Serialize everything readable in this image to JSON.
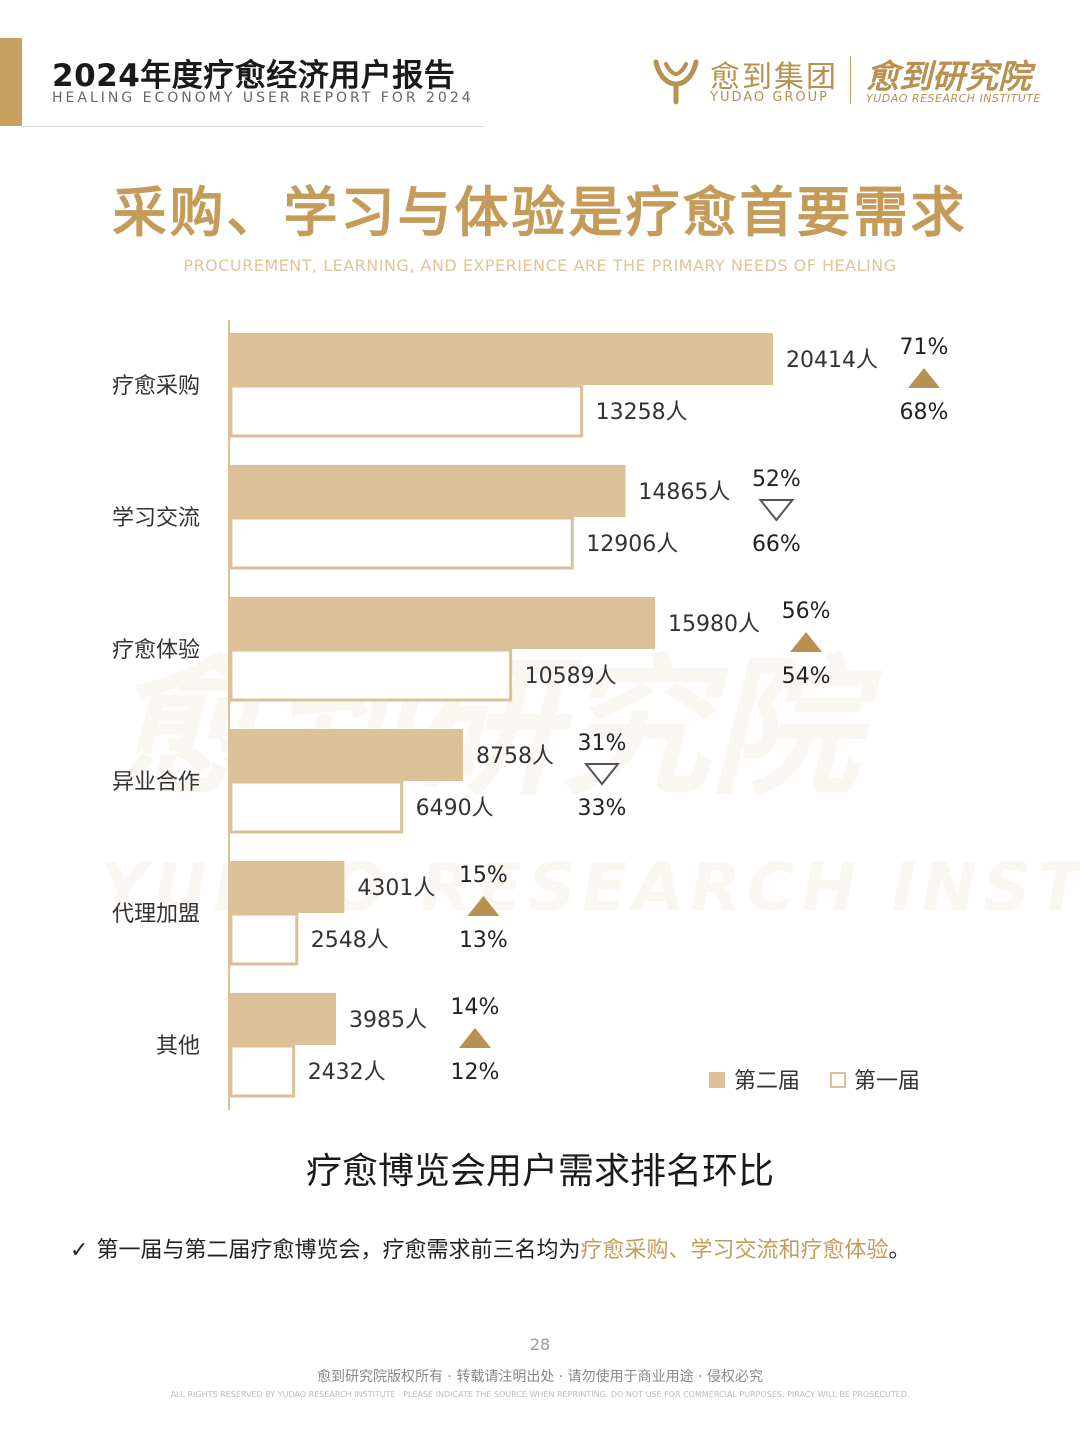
{
  "header": {
    "title": "2024年度疗愈经济用户报告",
    "subtitle": "HEALING ECONOMY USER REPORT FOR 2024",
    "logo1_cn": "愈到集团",
    "logo1_en": "YUDAO GROUP",
    "logo2_cn": "愈到研究院",
    "logo2_en": "YUDAO RESEARCH INSTITUTE"
  },
  "main": {
    "title": "采购、学习与体验是疗愈首要需求",
    "subtitle": "PROCUREMENT, LEARNING, AND EXPERIENCE ARE THE PRIMARY NEEDS OF HEALING"
  },
  "watermark": {
    "cn": "愈到研究院",
    "en": "YUDAO RESEARCH INSTITUTE"
  },
  "colors": {
    "accent": "#c8a15f",
    "bar_second": "#dcc198",
    "bar_first_fill": "#ffffff",
    "bar_first_border": "#dcc198",
    "arrow": "#b8904f"
  },
  "chart_data": {
    "type": "bar",
    "orientation": "horizontal",
    "categories": [
      "疗愈采购",
      "学习交流",
      "疗愈体验",
      "异业合作",
      "代理加盟",
      "其他"
    ],
    "series": [
      {
        "name": "第二届",
        "values": [
          20414,
          14865,
          15980,
          8758,
          4301,
          3985
        ],
        "labels": [
          "20414人",
          "14865人",
          "15980人",
          "8758人",
          "4301人",
          "3985人"
        ],
        "percent_labels": [
          "71%",
          "52%",
          "56%",
          "31%",
          "15%",
          "14%"
        ]
      },
      {
        "name": "第一届",
        "values": [
          13258,
          12906,
          10589,
          6490,
          2548,
          2432
        ],
        "labels": [
          "13258人",
          "12906人",
          "10589人",
          "6490人",
          "2548人",
          "2432人"
        ],
        "percent_labels": [
          "68%",
          "66%",
          "54%",
          "33%",
          "13%",
          "12%"
        ]
      }
    ],
    "trend": [
      "up",
      "down",
      "up",
      "down",
      "up",
      "up"
    ],
    "xlim": [
      0,
      20414
    ],
    "legend": {
      "position": "bottom-right",
      "items": [
        "第二届",
        "第一届"
      ]
    },
    "title": "疗愈博览会用户需求排名环比"
  },
  "note": {
    "check": "✓",
    "prefix": "第一届与第二届疗愈博览会，疗愈需求前三名均为",
    "highlight": "疗愈采购、学习交流和疗愈体验",
    "suffix": "。"
  },
  "footer": {
    "page": "28",
    "copyright_cn": "愈到研究院版权所有 · 转载请注明出处 · 请勿使用于商业用途 · 侵权必究",
    "copyright_en": "ALL RIGHTS RESERVED BY YUDAO RESEARCH INSTITUTE · PLEASE INDICATE THE SOURCE WHEN REPRINTING. DO NOT USE FOR COMMERCIAL PURPOSES. PIRACY WILL BE PROSECUTED."
  }
}
